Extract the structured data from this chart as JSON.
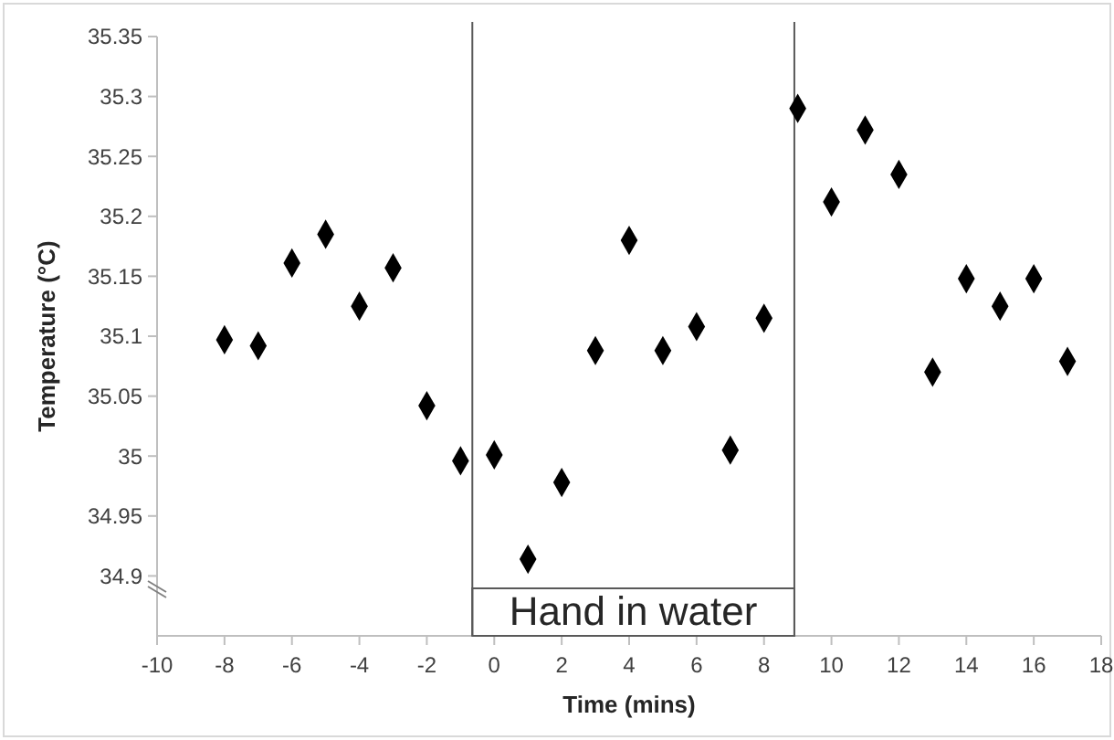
{
  "chart_data": {
    "type": "scatter",
    "xlabel": "Time (mins)",
    "ylabel": "Temperature (°C)",
    "x": [
      -8,
      -7,
      -6,
      -5,
      -4,
      -3,
      -2,
      -1,
      0,
      1,
      2,
      3,
      4,
      5,
      6,
      7,
      8,
      9,
      10,
      11,
      12,
      13,
      14,
      15,
      16,
      17
    ],
    "series": [
      {
        "color": "#000000",
        "values": [
          35.097,
          35.092,
          35.161,
          35.185,
          35.125,
          35.157,
          35.042,
          34.996,
          35.001,
          34.914,
          34.978,
          35.088,
          35.18,
          35.088,
          35.108,
          35.005,
          35.115,
          35.29,
          35.212,
          35.272,
          35.235,
          35.07,
          35.148,
          35.125,
          35.148,
          35.079
        ]
      }
    ],
    "marker": "diamond",
    "grid": false,
    "ref_lines": [
      {
        "axis": "x",
        "value": -0.65,
        "color": "#595959"
      },
      {
        "axis": "x",
        "value": 8.9,
        "color": "#595959"
      }
    ],
    "xlim": [
      -10,
      18
    ],
    "xticks": [
      -10,
      -8,
      -6,
      -4,
      -2,
      0,
      2,
      4,
      6,
      8,
      10,
      12,
      14,
      16,
      18
    ],
    "ylim": [
      34.85,
      35.35
    ],
    "yticks": [
      34.9,
      34.95,
      35,
      35.05,
      35.1,
      35.15,
      35.2,
      35.25,
      35.3,
      35.35
    ],
    "bands": [
      {
        "axis": "x",
        "from": -0.65,
        "to": 8.9,
        "label": "Hand in water",
        "color": "#595959"
      }
    ]
  }
}
